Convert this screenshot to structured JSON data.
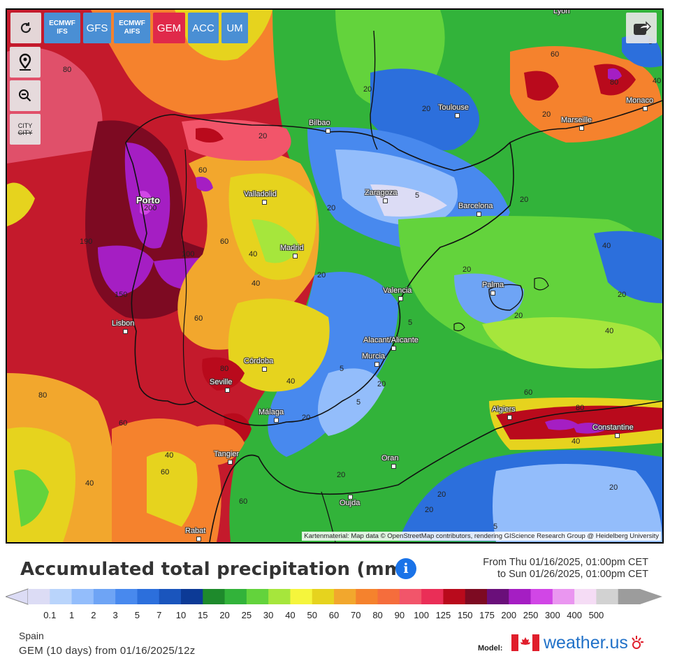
{
  "toolbar": {
    "models": [
      {
        "line1": "ECMWF",
        "line2": "IFS",
        "color": "#4a8fd4"
      },
      {
        "line1": "GFS",
        "line2": "",
        "color": "#4a8fd4"
      },
      {
        "line1": "ECMWF",
        "line2": "AIFS",
        "color": "#4a8fd4"
      },
      {
        "line1": "GEM",
        "line2": "",
        "color": "#e0294a"
      },
      {
        "line1": "ACC",
        "line2": "",
        "color": "#4a8fd4"
      },
      {
        "line1": "UM",
        "line2": "",
        "color": "#4a8fd4"
      }
    ],
    "city_toggle_line1": "CITY",
    "city_toggle_line2": "CITY"
  },
  "map": {
    "cities": [
      {
        "name": "Lyon"
      },
      {
        "name": "Bilbao"
      },
      {
        "name": "Toulouse"
      },
      {
        "name": "Monaco"
      },
      {
        "name": "Marseille"
      },
      {
        "name": "Valladolid"
      },
      {
        "name": "Zaragoza"
      },
      {
        "name": "Barcelona"
      },
      {
        "name": "Madrid"
      },
      {
        "name": "Valencia"
      },
      {
        "name": "Palma"
      },
      {
        "name": "Lisbon"
      },
      {
        "name": "Alacant/Alicante"
      },
      {
        "name": "Murcia"
      },
      {
        "name": "Córdoba"
      },
      {
        "name": "Seville"
      },
      {
        "name": "Málaga"
      },
      {
        "name": "Algiers"
      },
      {
        "name": "Constantine"
      },
      {
        "name": "Tangier"
      },
      {
        "name": "Oran"
      },
      {
        "name": "Oujda"
      },
      {
        "name": "Rabat"
      },
      {
        "name": "Porto"
      }
    ],
    "contour_labels": [
      "80",
      "20",
      "60",
      "20",
      "20",
      "20",
      "80",
      "60",
      "20",
      "20",
      "190",
      "200",
      "100",
      "60",
      "40",
      "5",
      "20",
      "150",
      "40",
      "20",
      "40",
      "20",
      "5",
      "60",
      "20",
      "40",
      "80",
      "5",
      "20",
      "80",
      "60",
      "40",
      "20",
      "40",
      "60",
      "5",
      "40",
      "60",
      "80",
      "40",
      "20",
      "5",
      "20",
      "20",
      "60",
      "40",
      "20",
      "5"
    ],
    "attribution": "Kartenmaterial: Map data © OpenStreetMap contributors, rendering GIScience Research Group @ Heidelberg University"
  },
  "legend": {
    "title": "Accumulated total precipitation (mm)",
    "from_text": "From Thu 01/16/2025, 01:00pm CET",
    "to_text": "to Sun 01/26/2025, 01:00pm CET",
    "scale_values": [
      "0.1",
      "1",
      "2",
      "3",
      "5",
      "7",
      "10",
      "15",
      "20",
      "25",
      "30",
      "40",
      "50",
      "60",
      "70",
      "80",
      "90",
      "100",
      "125",
      "150",
      "175",
      "200",
      "250",
      "300",
      "400",
      "500"
    ],
    "scale_colors": [
      "#dcdcf5",
      "#b9d4fb",
      "#93bdfb",
      "#6ea4f5",
      "#4889ee",
      "#2c6fdc",
      "#1a55bd",
      "#0c3a96",
      "#1e8a2c",
      "#32b33a",
      "#63d33c",
      "#a6e63c",
      "#f5f53c",
      "#e6d31e",
      "#f2a72d",
      "#f5822d",
      "#f56d3c",
      "#f2556a",
      "#ea2e57",
      "#b90a1c",
      "#7d0a22",
      "#6a0f7a",
      "#a51ec3",
      "#d146e6",
      "#ea96f0",
      "#f5dcf5",
      "#d2d2d2",
      "#9c9c9c"
    ]
  },
  "footer": {
    "region": "Spain",
    "run": "GEM (10 days) from 01/16/2025/12z",
    "model_label": "Model:",
    "brand": "weather.us"
  }
}
